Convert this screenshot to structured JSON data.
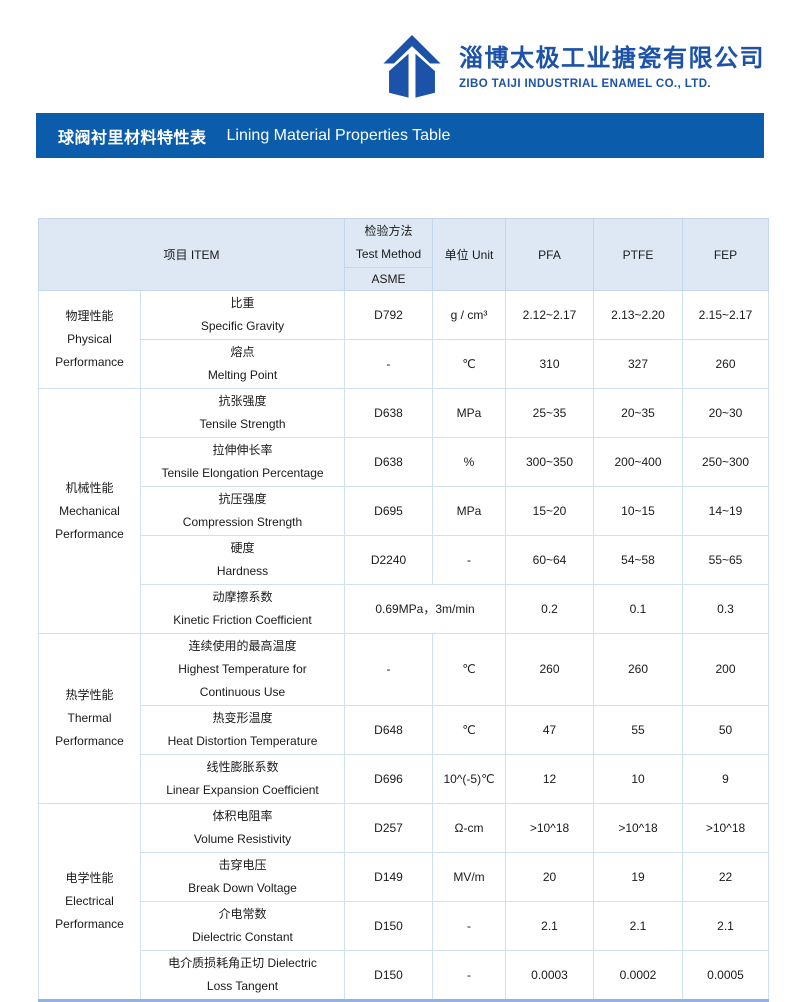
{
  "colors": {
    "brand": "#1c52a8",
    "banner_bg": "#0b5cab",
    "table_header_bg": "#dde8f4",
    "table_border": "#cfe0f2",
    "table_bottom_border": "#8eb5e2"
  },
  "company": {
    "name_cn": "淄博太极工业搪瓷有限公司",
    "name_en": "ZIBO TAIJI INDUSTRIAL ENAMEL CO., LTD.",
    "logo_icon": "taiji-roof-mark"
  },
  "banner": {
    "title_cn": "球阀衬里材料特性表",
    "title_en": "Lining Material Properties Table"
  },
  "table": {
    "header": {
      "item": "项目 ITEM",
      "test_method_cn": "检验方法",
      "test_method_en": "Test Method",
      "test_method_standard": "ASME",
      "unit": "单位  Unit",
      "materials": [
        "PFA",
        "PTFE",
        "FEP"
      ]
    },
    "sections": [
      {
        "category_cn": "物理性能",
        "category_en": "Physical Performance",
        "rows": [
          {
            "item_lines": [
              "比重",
              "Specific Gravity"
            ],
            "method": "D792",
            "unit": "g / cm³",
            "values": [
              "2.12~2.17",
              "2.13~2.20",
              "2.15~2.17"
            ]
          },
          {
            "item_lines": [
              "熔点",
              "Melting Point"
            ],
            "method": "-",
            "unit": "℃",
            "values": [
              "310",
              "327",
              "260"
            ]
          }
        ]
      },
      {
        "category_cn": "机械性能",
        "category_en": "Mechanical Performance",
        "rows": [
          {
            "item_lines": [
              "抗张强度",
              "Tensile Strength"
            ],
            "method": "D638",
            "unit": "MPa",
            "values": [
              "25~35",
              "20~35",
              "20~30"
            ]
          },
          {
            "item_lines": [
              "拉伸伸长率",
              "Tensile Elongation Percentage"
            ],
            "method": "D638",
            "unit": "%",
            "values": [
              "300~350",
              "200~400",
              "250~300"
            ]
          },
          {
            "item_lines": [
              "抗压强度",
              "Compression Strength"
            ],
            "method": "D695",
            "unit": "MPa",
            "values": [
              "15~20",
              "10~15",
              "14~19"
            ]
          },
          {
            "item_lines": [
              "硬度",
              "Hardness"
            ],
            "method": "D2240",
            "unit": "-",
            "values": [
              "60~64",
              "54~58",
              "55~65"
            ]
          },
          {
            "item_lines": [
              "动摩擦系数",
              "Kinetic Friction Coefficient"
            ],
            "method_span": "0.69MPa，3m/min",
            "values": [
              "0.2",
              "0.1",
              "0.3"
            ]
          }
        ]
      },
      {
        "category_cn": "热学性能",
        "category_en": "Thermal Performance",
        "rows": [
          {
            "item_lines": [
              "连续使用的最高温度",
              "Highest Temperature for",
              "Continuous Use"
            ],
            "method": "-",
            "unit": "℃",
            "values": [
              "260",
              "260",
              "200"
            ],
            "tall": true
          },
          {
            "item_lines": [
              "热变形温度",
              "Heat Distortion Temperature"
            ],
            "method": "D648",
            "unit": "℃",
            "values": [
              "47",
              "55",
              "50"
            ]
          },
          {
            "item_lines": [
              "线性膨胀系数",
              "Linear Expansion Coefficient"
            ],
            "method": "D696",
            "unit": "10^(-5)℃",
            "values": [
              "12",
              "10",
              "9"
            ]
          }
        ]
      },
      {
        "category_cn": "电学性能",
        "category_en": "Electrical Performance",
        "rows": [
          {
            "item_lines": [
              "体积电阻率",
              "Volume Resistivity"
            ],
            "method": "D257",
            "unit": "Ω-cm",
            "values": [
              ">10^18",
              ">10^18",
              ">10^18"
            ]
          },
          {
            "item_lines": [
              "击穿电压",
              "Break Down Voltage"
            ],
            "method": "D149",
            "unit": "MV/m",
            "values": [
              "20",
              "19",
              "22"
            ]
          },
          {
            "item_lines": [
              "介电常数",
              "Dielectric Constant"
            ],
            "method": "D150",
            "unit": "-",
            "values": [
              "2.1",
              "2.1",
              "2.1"
            ]
          },
          {
            "item_lines": [
              "电介质损耗角正切 Dielectric",
              "Loss Tangent"
            ],
            "method": "D150",
            "unit": "-",
            "values": [
              "0.0003",
              "0.0002",
              "0.0005"
            ]
          }
        ]
      }
    ]
  }
}
